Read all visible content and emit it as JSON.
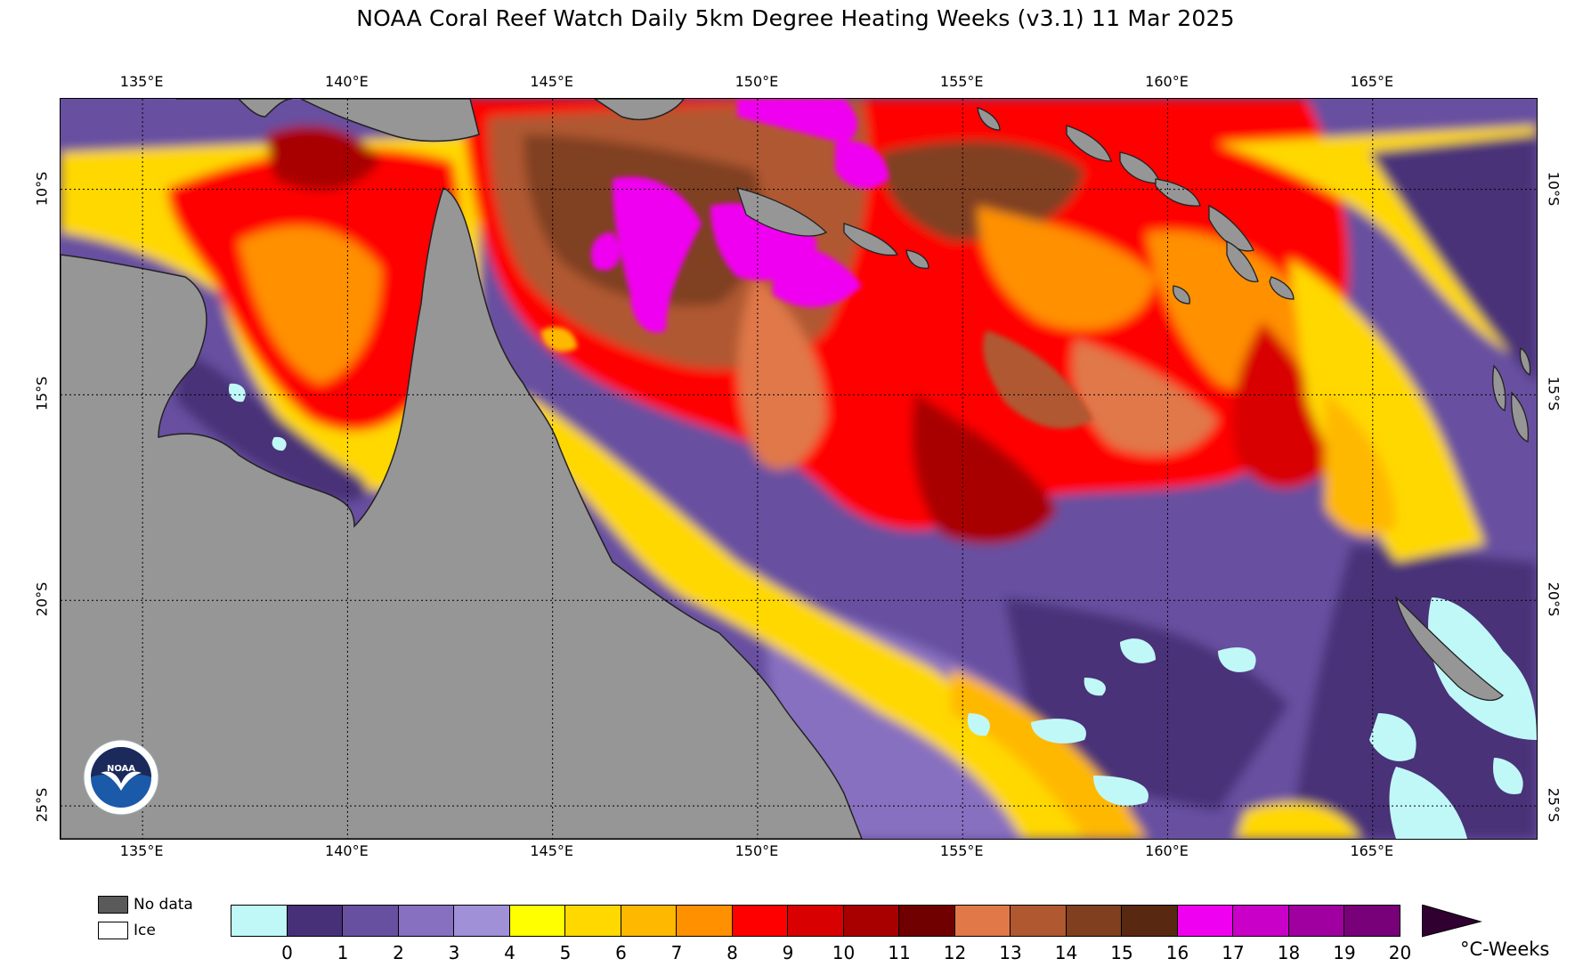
{
  "title": "NOAA Coral Reef Watch Daily 5km Degree Heating Weeks  (v3.1)   11 Mar 2025",
  "map": {
    "lon_labels": [
      "135°E",
      "140°E",
      "145°E",
      "150°E",
      "155°E",
      "160°E",
      "165°E"
    ],
    "lat_labels": [
      "10°S",
      "15°S",
      "20°S",
      "25°S"
    ],
    "colors": {
      "land": "#969696",
      "no_data": "#5a5a5a",
      "ice": "#ffffff"
    }
  },
  "legend": {
    "no_data_label": "No data",
    "ice_label": "Ice",
    "unit_label": "°C-Weeks",
    "ticks": [
      "0",
      "1",
      "2",
      "3",
      "4",
      "5",
      "6",
      "7",
      "8",
      "9",
      "10",
      "11",
      "12",
      "13",
      "14",
      "15",
      "16",
      "17",
      "18",
      "19",
      "20"
    ],
    "colors": [
      "#c0f8f8",
      "#483078",
      "#6850a0",
      "#8870c0",
      "#a090d8",
      "#ffff00",
      "#ffd800",
      "#ffb800",
      "#ff9000",
      "#ff0000",
      "#d80000",
      "#a80000",
      "#700000",
      "#e07848",
      "#b05830",
      "#804020",
      "#582810",
      "#f000f0",
      "#c800c8",
      "#a000a0",
      "#780078",
      "#300030"
    ]
  },
  "logo": {
    "icon": "noaa-logo-icon",
    "text": "NOAA"
  }
}
